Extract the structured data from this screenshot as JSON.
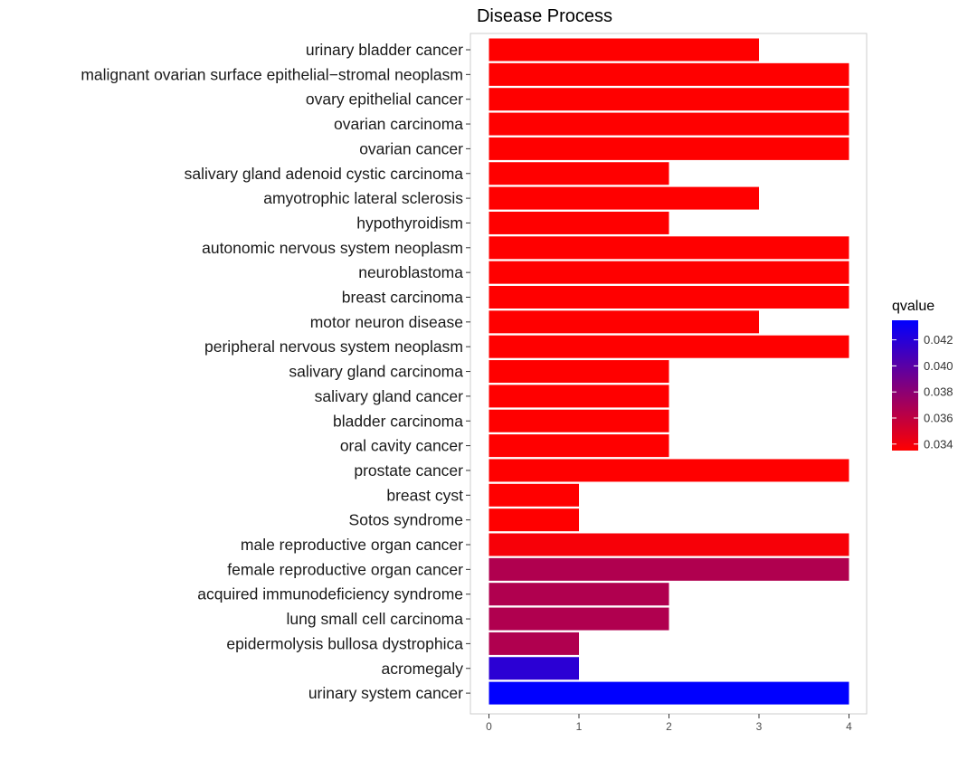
{
  "chart_data": {
    "type": "bar",
    "orientation": "horizontal",
    "title": "Disease Process",
    "xlabel": "",
    "ylabel": "",
    "xlim": [
      0,
      4.2
    ],
    "x_ticks": [
      0,
      1,
      2,
      3,
      4
    ],
    "grid": false,
    "categories": [
      "urinary bladder cancer",
      "malignant ovarian surface epithelial−stromal neoplasm",
      "ovary epithelial cancer",
      "ovarian carcinoma",
      "ovarian cancer",
      "salivary gland adenoid cystic carcinoma",
      "amyotrophic lateral sclerosis",
      "hypothyroidism",
      "autonomic nervous system neoplasm",
      "neuroblastoma",
      "breast carcinoma",
      "motor neuron disease",
      "peripheral nervous system neoplasm",
      "salivary gland carcinoma",
      "salivary gland cancer",
      "bladder carcinoma",
      "oral cavity cancer",
      "prostate cancer",
      "breast cyst",
      "Sotos syndrome",
      "male reproductive organ cancer",
      "female reproductive organ cancer",
      "acquired immunodeficiency syndrome",
      "lung small cell carcinoma",
      "epidermolysis bullosa dystrophica",
      "acromegaly",
      "urinary system cancer"
    ],
    "values": [
      3,
      4,
      4,
      4,
      4,
      2,
      3,
      2,
      4,
      4,
      4,
      3,
      4,
      2,
      2,
      2,
      2,
      4,
      1,
      1,
      4,
      4,
      2,
      2,
      1,
      1,
      4
    ],
    "qvalues": [
      0.0335,
      0.0335,
      0.0335,
      0.0335,
      0.0335,
      0.0335,
      0.0335,
      0.0335,
      0.0335,
      0.0335,
      0.0335,
      0.0335,
      0.0335,
      0.0335,
      0.0335,
      0.0335,
      0.0335,
      0.0335,
      0.0335,
      0.0335,
      0.0338,
      0.0366,
      0.0366,
      0.0366,
      0.0366,
      0.0418,
      0.0435
    ],
    "color_legend": {
      "title": "qvalue",
      "min": 0.0335,
      "max": 0.0435,
      "ticks": [
        "0.034",
        "0.036",
        "0.038",
        "0.040",
        "0.042"
      ],
      "tick_values": [
        0.034,
        0.036,
        0.038,
        0.04,
        0.042
      ],
      "low_color": "#ff0000",
      "high_color": "#0000ff",
      "placement": "right"
    }
  }
}
